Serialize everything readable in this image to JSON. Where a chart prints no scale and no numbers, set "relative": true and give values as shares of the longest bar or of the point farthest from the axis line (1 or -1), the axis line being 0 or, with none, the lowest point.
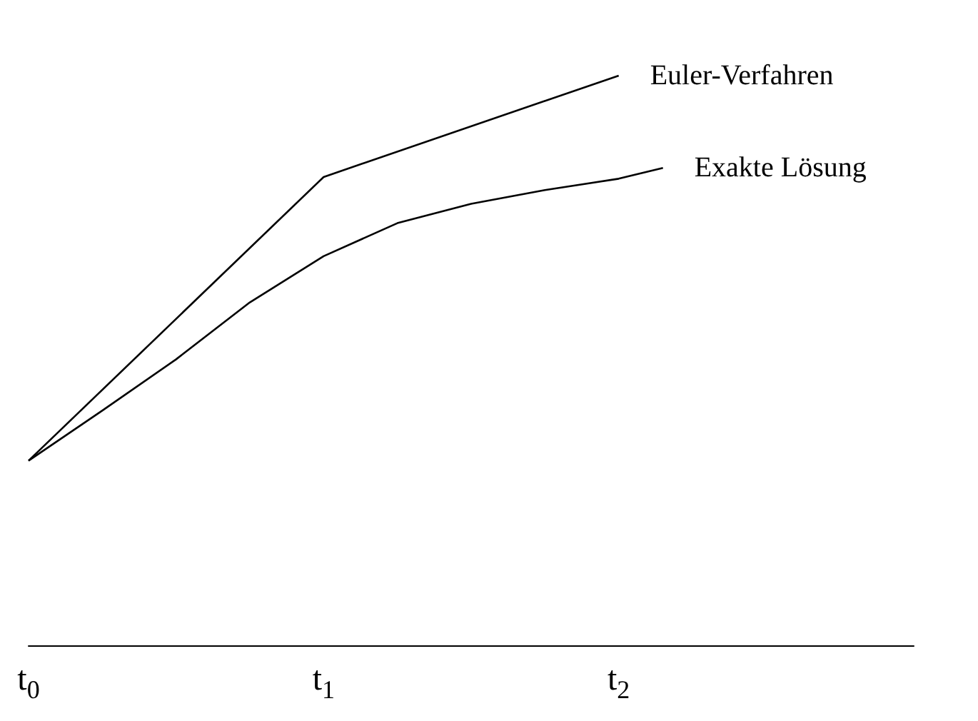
{
  "chart_data": {
    "type": "line",
    "relative": true,
    "xlim": [
      0,
      3
    ],
    "xticks": [
      {
        "value": 0,
        "label": "t$_{0}$"
      },
      {
        "value": 1,
        "label": "t$_{1}$"
      },
      {
        "value": 2,
        "label": "t$_{2}$"
      }
    ],
    "series": [
      {
        "name": "Euler-Verfahren",
        "color": "#000000",
        "x": [
          0,
          1,
          2
        ],
        "values": [
          0.324,
          0.822,
          1
        ]
      },
      {
        "name": "Exakte Lösung",
        "color": "#000000",
        "x": [
          0,
          0.25,
          0.5,
          0.75,
          1,
          1.25,
          1.5,
          1.75,
          2,
          2.15
        ],
        "values": [
          0.324,
          0.412,
          0.502,
          0.602,
          0.683,
          0.741,
          0.775,
          0.799,
          0.819,
          0.838
        ]
      }
    ],
    "grid": false,
    "legend": false
  }
}
